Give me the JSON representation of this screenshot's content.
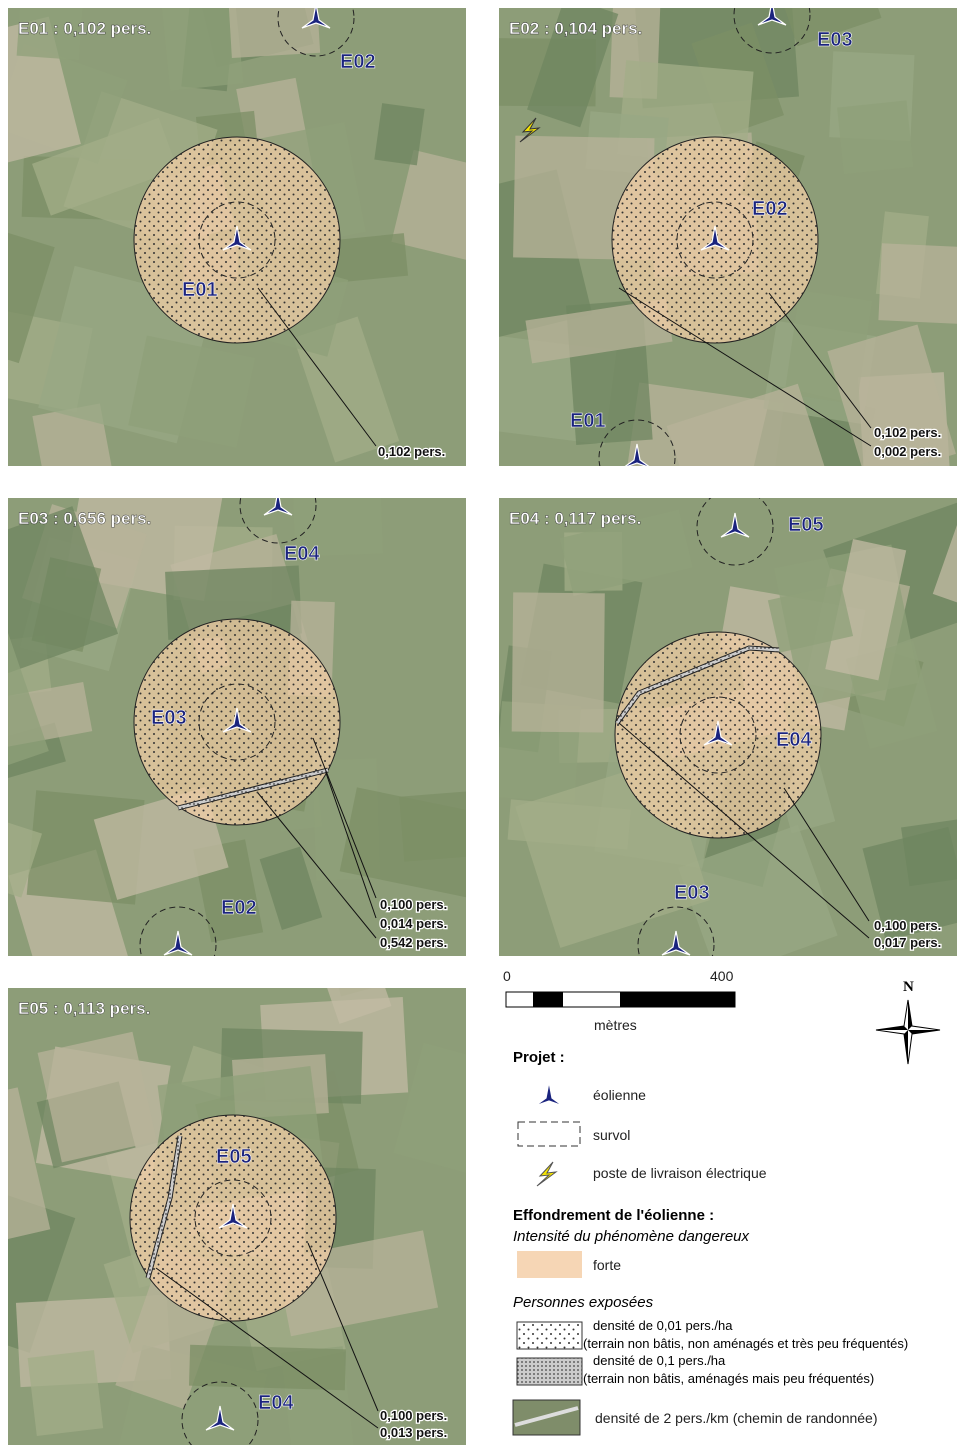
{
  "panels": [
    {
      "title": "E01 : 0,102 pers.",
      "labels": [
        "E01",
        "E02"
      ],
      "callouts": [
        "0,102 pers."
      ]
    },
    {
      "title": "E02 : 0,104 pers.",
      "labels": [
        "E03",
        "E02",
        "E01"
      ],
      "callouts": [
        "0,102 pers.",
        "0,002 pers."
      ]
    },
    {
      "title": "E03 : 0,656 pers.",
      "labels": [
        "E04",
        "E03",
        "E02"
      ],
      "callouts": [
        "0,100 pers.",
        "0,014 pers.",
        "0,542 pers."
      ]
    },
    {
      "title": "E04 : 0,117 pers.",
      "labels": [
        "E05",
        "E04",
        "E03"
      ],
      "callouts": [
        "0,100 pers.",
        "0,017 pers."
      ]
    },
    {
      "title": "E05 : 0,113 pers.",
      "labels": [
        "E05",
        "E04"
      ],
      "callouts": [
        "0,100 pers.",
        "0,013 pers."
      ]
    }
  ],
  "scale": {
    "start": "0",
    "end": "400",
    "unit": "mètres"
  },
  "north": "N",
  "legend": {
    "project_title": "Projet :",
    "turbine": "éolienne",
    "overflight": "survol",
    "substation": "poste de livraison électrique",
    "collapse_title": "Effondrement de l'éolienne :",
    "intensity_title": "Intensité du phénomène dangereux",
    "intensity_strong": "forte",
    "exposed_title": "Personnes exposées",
    "density_low": "densité de 0,01 pers./ha",
    "density_low_note": "(terrain non bâtis, non aménagés et très peu fréquentés)",
    "density_mid": "densité de 0,1 pers./ha",
    "density_mid_note": "(terrain non bâtis, aménagés mais peu fréquentés)",
    "density_path": "densité de 2 pers./km (chemin de randonnée)"
  }
}
